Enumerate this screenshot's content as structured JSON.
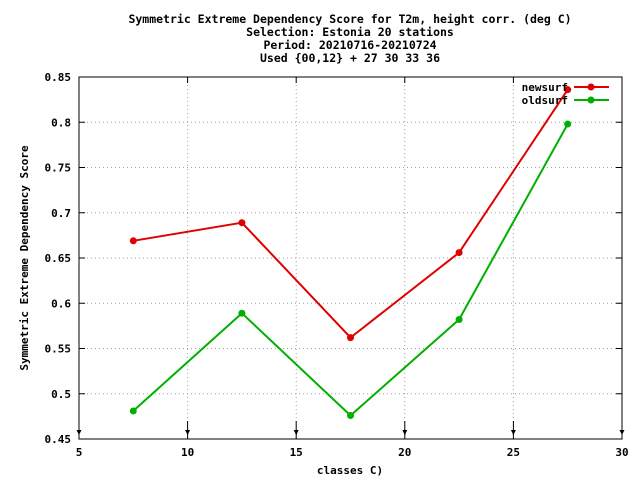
{
  "chart_data": {
    "type": "line",
    "title_lines": [
      "Symmetric Extreme Dependency Score  for T2m, height corr. (deg C)",
      "Selection: Estonia     20 stations",
      "Period: 20210716-20210724",
      "Used {00,12} + 27 30 33 36"
    ],
    "xlabel": "classes C)",
    "ylabel": "Symmetric Extreme Dependency Score",
    "xlim": [
      5,
      30
    ],
    "ylim": [
      0.45,
      0.85
    ],
    "x_ticks": [
      "5",
      "10",
      "15",
      "20",
      "25",
      "30"
    ],
    "y_ticks": [
      "0.45",
      "0.5",
      "0.55",
      "0.6",
      "0.65",
      "0.7",
      "0.75",
      "0.8",
      "0.85"
    ],
    "grid": true,
    "legend_position": "top-right",
    "x": [
      7.5,
      12.5,
      17.5,
      22.5,
      27.5
    ],
    "series": [
      {
        "name": "newsurf",
        "color": "#e00000",
        "values": [
          0.669,
          0.689,
          0.562,
          0.656,
          0.836
        ]
      },
      {
        "name": "oldsurf",
        "color": "#00b000",
        "values": [
          0.481,
          0.589,
          0.476,
          0.582,
          0.798
        ]
      }
    ]
  }
}
